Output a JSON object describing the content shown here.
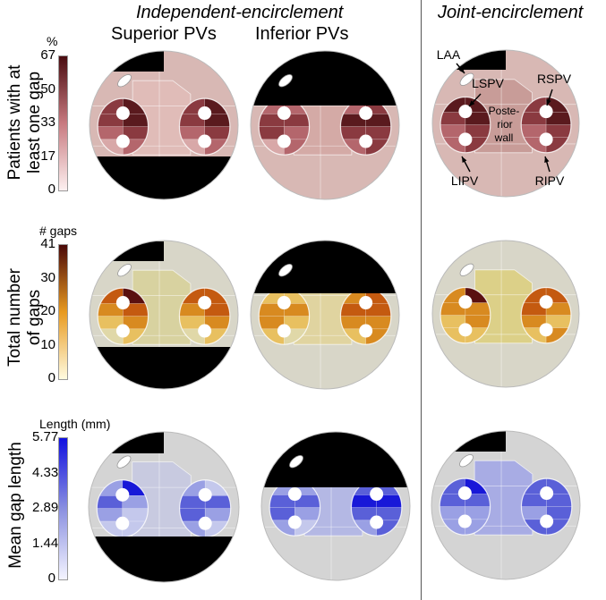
{
  "headers": {
    "independent": "Independent-encirclement",
    "joint": "Joint-encirclement",
    "superior": "Superior PVs",
    "inferior": "Inferior PVs"
  },
  "rows": [
    {
      "label_line1": "Patients with at",
      "label_line2": "least one gap",
      "colorbar_title": "%",
      "ticks": [
        "67",
        "50",
        "33",
        "17",
        "0"
      ],
      "colors": {
        "low": "#fdf0f0",
        "mid": "#c87a80",
        "high": "#4a0c10",
        "background": "#d8b8b4"
      }
    },
    {
      "label_line1": "Total number",
      "label_line2": "of gaps",
      "colorbar_title": "# gaps",
      "ticks": [
        "41",
        "30",
        "20",
        "10",
        "0"
      ],
      "colors": {
        "low": "#fffbe0",
        "mid": "#e89a20",
        "high": "#4a0808",
        "background": "#d8d6c8"
      }
    },
    {
      "label_line1": "Mean gap length",
      "label_line2": "",
      "colorbar_title": "Length (mm)",
      "ticks": [
        "5.77",
        "4.33",
        "2.89",
        "1.44",
        "0"
      ],
      "colors": {
        "low": "#f4f4ff",
        "mid": "#8a90e0",
        "high": "#1010e0",
        "background": "#d4d4d4"
      }
    }
  ],
  "annotations": {
    "laa": "LAA",
    "lspv": "LSPV",
    "rspv": "RSPV",
    "lipv": "LIPV",
    "ripv": "RIPV",
    "wall1": "Poste-",
    "wall2": "rior",
    "wall3": "wall"
  }
}
